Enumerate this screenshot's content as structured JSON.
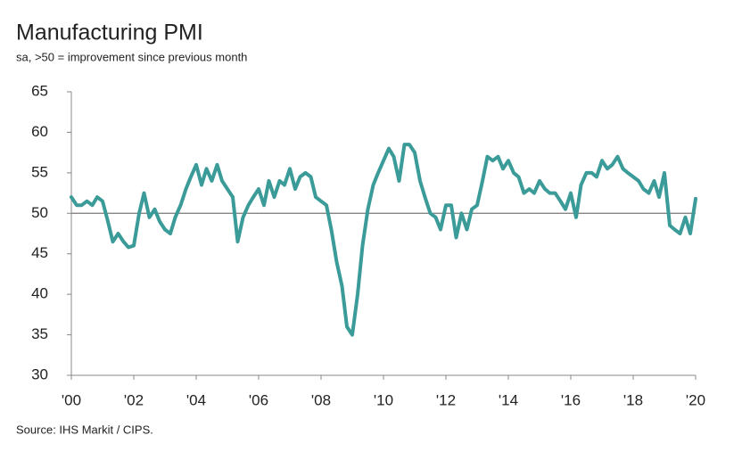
{
  "chart_data": {
    "type": "line",
    "title": "Manufacturing PMI",
    "subtitle": "sa, >50 = improvement since previous month",
    "source": "Source: IHS Markit / CIPS.",
    "x": [
      2000,
      2000.17,
      2000.33,
      2000.5,
      2000.67,
      2000.83,
      2001,
      2001.17,
      2001.33,
      2001.5,
      2001.67,
      2001.83,
      2002,
      2002.17,
      2002.33,
      2002.5,
      2002.67,
      2002.83,
      2003,
      2003.17,
      2003.33,
      2003.5,
      2003.67,
      2003.83,
      2004,
      2004.17,
      2004.33,
      2004.5,
      2004.67,
      2004.83,
      2005,
      2005.17,
      2005.33,
      2005.5,
      2005.67,
      2005.83,
      2006,
      2006.17,
      2006.33,
      2006.5,
      2006.67,
      2006.83,
      2007,
      2007.17,
      2007.33,
      2007.5,
      2007.67,
      2007.83,
      2008,
      2008.17,
      2008.33,
      2008.5,
      2008.67,
      2008.83,
      2009,
      2009.17,
      2009.33,
      2009.5,
      2009.67,
      2009.83,
      2010,
      2010.17,
      2010.33,
      2010.5,
      2010.67,
      2010.83,
      2011,
      2011.17,
      2011.33,
      2011.5,
      2011.67,
      2011.83,
      2012,
      2012.17,
      2012.33,
      2012.5,
      2012.67,
      2012.83,
      2013,
      2013.17,
      2013.33,
      2013.5,
      2013.67,
      2013.83,
      2014,
      2014.17,
      2014.33,
      2014.5,
      2014.67,
      2014.83,
      2015,
      2015.17,
      2015.33,
      2015.5,
      2015.67,
      2015.83,
      2016,
      2016.17,
      2016.33,
      2016.5,
      2016.67,
      2016.83,
      2017,
      2017.17,
      2017.33,
      2017.5,
      2017.67,
      2017.83,
      2018,
      2018.17,
      2018.33,
      2018.5,
      2018.67,
      2018.83,
      2019,
      2019.17,
      2019.33,
      2019.5,
      2019.67,
      2019.83,
      2020
    ],
    "series": [
      {
        "name": "Manufacturing PMI",
        "color": "#3a9b98",
        "values": [
          52,
          51,
          51,
          51.5,
          51,
          52,
          51.5,
          49,
          46.5,
          47.5,
          46.5,
          45.8,
          46,
          50,
          52.5,
          49.5,
          50.5,
          49,
          48,
          47.5,
          49.5,
          51,
          53,
          54.5,
          56,
          53.5,
          55.5,
          54,
          56,
          54,
          53,
          52,
          46.5,
          49.5,
          51,
          52,
          53,
          51,
          54,
          52,
          54,
          53.5,
          55.5,
          53,
          54.5,
          55,
          54.5,
          52,
          51.5,
          51,
          48,
          44,
          41,
          36,
          35,
          40,
          46,
          50.5,
          53.5,
          55,
          56.5,
          58,
          57,
          54,
          58.5,
          58.5,
          57.5,
          54,
          52,
          50,
          49.5,
          48,
          51,
          51,
          47,
          50,
          48,
          50.5,
          51,
          54,
          57,
          56.5,
          57,
          55.5,
          56.5,
          55,
          54.5,
          52.5,
          53,
          52.5,
          54,
          53,
          52.5,
          52.5,
          51.5,
          50.5,
          52.5,
          49.5,
          53.5,
          55,
          55,
          54.5,
          56.5,
          55.5,
          56,
          57,
          55.5,
          55,
          54.5,
          54,
          53,
          52.5,
          54,
          52,
          55,
          48.5,
          48,
          47.5,
          49.5,
          47.5,
          51.8
        ]
      }
    ],
    "xlim": [
      2000,
      2020
    ],
    "xticks": [
      {
        "value": 2000,
        "label": "'00"
      },
      {
        "value": 2002,
        "label": "'02"
      },
      {
        "value": 2004,
        "label": "'04"
      },
      {
        "value": 2006,
        "label": "'06"
      },
      {
        "value": 2008,
        "label": "'08"
      },
      {
        "value": 2010,
        "label": "'10"
      },
      {
        "value": 2012,
        "label": "'12"
      },
      {
        "value": 2014,
        "label": "'14"
      },
      {
        "value": 2016,
        "label": "'16"
      },
      {
        "value": 2018,
        "label": "'18"
      },
      {
        "value": 2020,
        "label": "'20"
      }
    ],
    "ylim": [
      30,
      65
    ],
    "yticks": [
      30,
      35,
      40,
      45,
      50,
      55,
      60,
      65
    ],
    "reference_line": 50
  }
}
